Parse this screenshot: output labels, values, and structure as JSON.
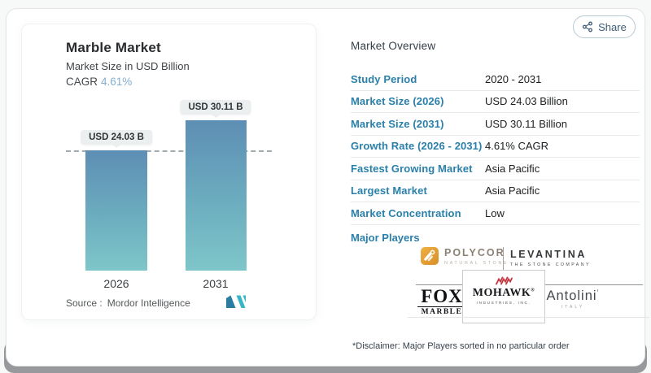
{
  "share": {
    "label": "Share"
  },
  "chart_data": {
    "type": "bar",
    "title": "Marble Market",
    "subtitle": "Market Size in USD Billion",
    "cagr_label": "CAGR",
    "cagr_value": "4.61%",
    "categories": [
      "2026",
      "2031"
    ],
    "values": [
      24.03,
      30.11
    ],
    "bar_labels": [
      "USD 24.03 B",
      "USD 30.11 B"
    ],
    "ylim": [
      0,
      33
    ],
    "grid": false,
    "reference_line_at": 24.03,
    "legend": "none",
    "source_label": "Source :",
    "source_value": "Mordor Intelligence"
  },
  "overview": {
    "title": "Market Overview",
    "rows": [
      {
        "label": "Study Period",
        "value": "2020 - 2031"
      },
      {
        "label": "Market Size (2026)",
        "value": "USD 24.03 Billion"
      },
      {
        "label": "Market Size (2031)",
        "value": "USD 30.11 Billion"
      },
      {
        "label": "Growth Rate (2026 - 2031)",
        "value": "4.61% CAGR"
      },
      {
        "label": "Fastest Growing Market",
        "value": "Asia Pacific"
      },
      {
        "label": "Largest Market",
        "value": "Asia Pacific"
      },
      {
        "label": "Market Concentration",
        "value": "Low"
      }
    ],
    "major_players_label": "Major Players",
    "players": {
      "polycor": {
        "name": "POLYCOR",
        "tagline": "NATURAL STONE"
      },
      "levantina": {
        "name": "LEVANTINA",
        "tagline": "THE STONE COMPANY"
      },
      "fox": {
        "name": "FOX",
        "tagline": "MARBLE"
      },
      "mohawk": {
        "name": "MOHAWK",
        "reg": "®",
        "tagline": "INDUSTRIES, INC."
      },
      "antolini": {
        "name": "Antolini",
        "mark": "’",
        "tagline": "ITALY"
      }
    },
    "disclaimer": "*Disclaimer: Major Players sorted in no particular order"
  },
  "colors": {
    "accent_blue": "#2a80aa",
    "cagr_blue": "#84aecd",
    "bar_gradient_top": "#5e8eb4",
    "bar_gradient_bottom": "#7ec6c9",
    "mordor_blue": "#2a7ca1",
    "mordor_teal": "#35b6c3",
    "polycor_gold": "#e2a23a",
    "mohawk_red": "#c23a43",
    "share_text": "#3f5c77"
  }
}
